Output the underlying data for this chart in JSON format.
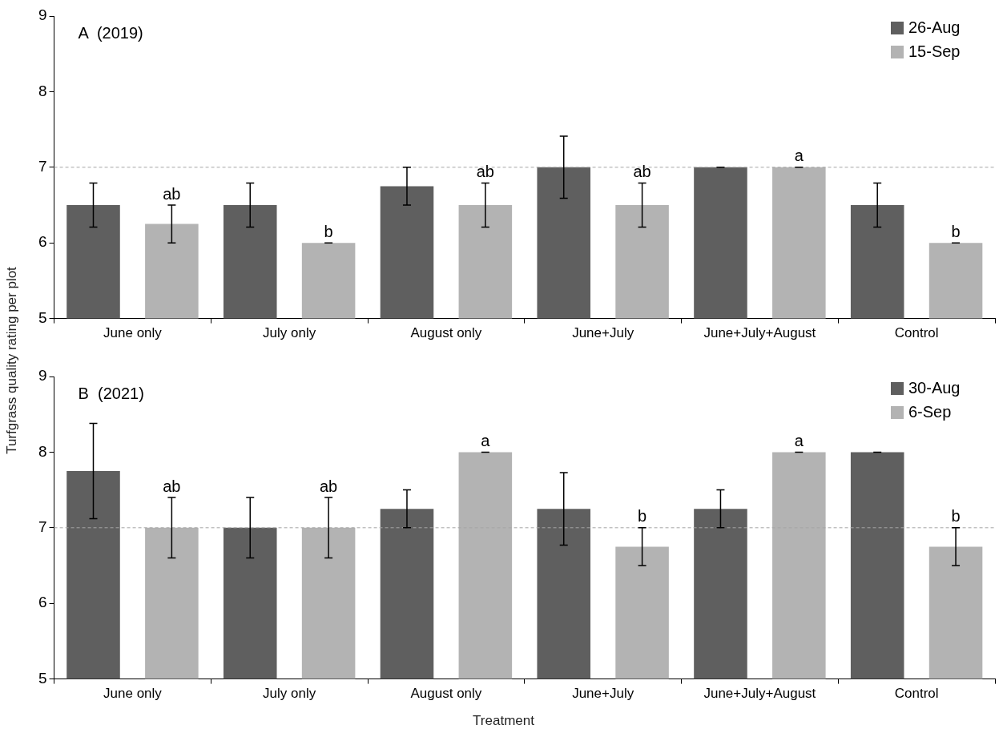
{
  "chart_data": [
    {
      "type": "bar",
      "title": "A  (2019)",
      "ylabel": "Turfgrass quality rating per plot",
      "categories": [
        "June only",
        "July only",
        "August only",
        "June+July",
        "June+July+August",
        "Control"
      ],
      "series": [
        {
          "name": "26-Aug",
          "color": "#5f5f5f",
          "values": [
            6.5,
            6.5,
            6.75,
            7,
            7,
            6.5
          ],
          "errors": [
            0.29,
            0.29,
            0.25,
            0.41,
            0,
            0.29
          ]
        },
        {
          "name": "15-Sep",
          "color": "#b3b3b3",
          "values": [
            6.25,
            6,
            6.5,
            6.5,
            7,
            6
          ],
          "errors": [
            0.25,
            0,
            0.29,
            0.29,
            0,
            0
          ],
          "value_labels": [
            "ab",
            "b",
            "ab",
            "ab",
            "a",
            "b"
          ]
        }
      ],
      "ylim": [
        5,
        9
      ],
      "yticks": [
        5,
        6,
        7,
        8,
        9
      ],
      "grid": false,
      "legend": "top right",
      "ref_lines": [
        {
          "axis": "y",
          "value": 7,
          "color": "#a6a6a6",
          "line_style": "dashed"
        }
      ]
    },
    {
      "type": "bar",
      "title": "B  (2021)",
      "xlabel": "Treatment",
      "categories": [
        "June only",
        "July only",
        "August only",
        "June+July",
        "June+July+August",
        "Control"
      ],
      "series": [
        {
          "name": "30-Aug",
          "color": "#5f5f5f",
          "values": [
            7.75,
            7,
            7.25,
            7.25,
            7.25,
            8
          ],
          "errors": [
            0.63,
            0.4,
            0.25,
            0.48,
            0.25,
            0
          ]
        },
        {
          "name": "6-Sep",
          "color": "#b3b3b3",
          "values": [
            7,
            7,
            8,
            6.75,
            8,
            6.75
          ],
          "errors": [
            0.4,
            0.4,
            0,
            0.25,
            0,
            0.25
          ],
          "value_labels": [
            "ab",
            "ab",
            "a",
            "b",
            "a",
            "b"
          ]
        }
      ],
      "ylim": [
        5,
        9
      ],
      "yticks": [
        5,
        6,
        7,
        8,
        9
      ],
      "grid": false,
      "legend": "top right",
      "ref_lines": [
        {
          "axis": "y",
          "value": 7,
          "color": "#a6a6a6",
          "line_style": "dashed"
        }
      ]
    }
  ]
}
